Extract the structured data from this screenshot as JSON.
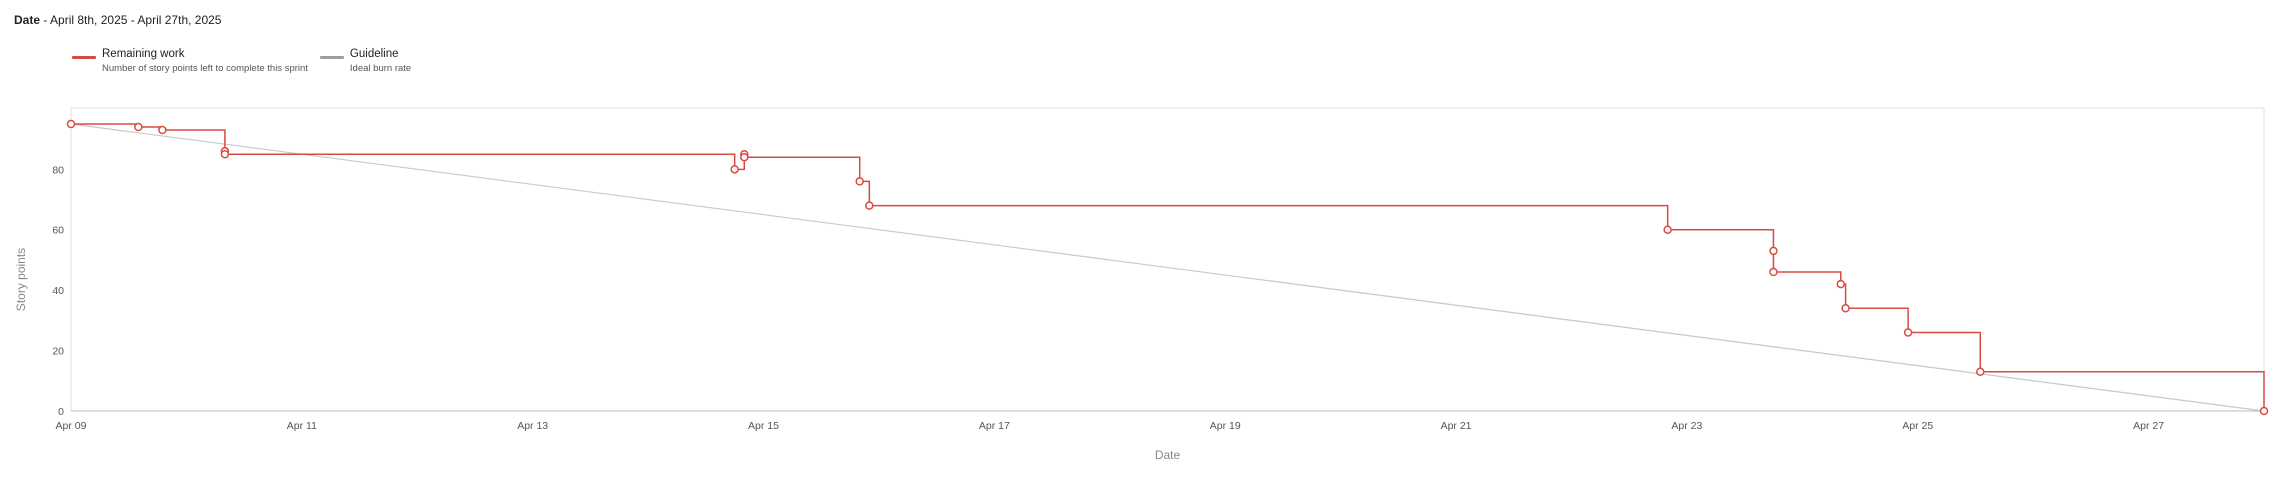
{
  "header": {
    "date_label": "Date",
    "date_range": "April 8th, 2025 - April 27th, 2025"
  },
  "legend": [
    {
      "name": "Remaining work",
      "description": "Number of story points left to complete this sprint",
      "color": "#d84b40"
    },
    {
      "name": "Guideline",
      "description": "Ideal burn rate",
      "color": "#9e9e9e"
    }
  ],
  "chart_data": {
    "type": "line",
    "xlabel": "Date",
    "ylabel": "Story points",
    "ylim": [
      0,
      95
    ],
    "yticks": [
      0,
      20,
      40,
      60,
      80
    ],
    "xlim": [
      "2025-04-09",
      "2025-04-28"
    ],
    "xticks": [
      "Apr 09",
      "Apr 11",
      "Apr 13",
      "Apr 15",
      "Apr 17",
      "Apr 19",
      "Apr 21",
      "Apr 23",
      "Apr 25",
      "Apr 27"
    ],
    "grid": false,
    "legend_position": "top-left",
    "series": [
      {
        "name": "Remaining work",
        "color": "#d84b40",
        "step": true,
        "points": [
          {
            "x": "2025-04-09 00:00",
            "y": 95
          },
          {
            "x": "2025-04-09 14:00",
            "y": 94
          },
          {
            "x": "2025-04-09 19:00",
            "y": 93
          },
          {
            "x": "2025-04-10 08:00",
            "y": 86
          },
          {
            "x": "2025-04-10 08:00",
            "y": 85
          },
          {
            "x": "2025-04-14 18:00",
            "y": 80
          },
          {
            "x": "2025-04-14 20:00",
            "y": 85
          },
          {
            "x": "2025-04-14 20:00",
            "y": 84
          },
          {
            "x": "2025-04-15 20:00",
            "y": 76
          },
          {
            "x": "2025-04-15 22:00",
            "y": 68
          },
          {
            "x": "2025-04-22 20:00",
            "y": 60
          },
          {
            "x": "2025-04-23 18:00",
            "y": 53
          },
          {
            "x": "2025-04-23 18:00",
            "y": 46
          },
          {
            "x": "2025-04-24 08:00",
            "y": 42
          },
          {
            "x": "2025-04-24 09:00",
            "y": 34
          },
          {
            "x": "2025-04-24 22:00",
            "y": 26
          },
          {
            "x": "2025-04-25 13:00",
            "y": 13
          },
          {
            "x": "2025-04-28 00:00",
            "y": 0
          }
        ]
      },
      {
        "name": "Guideline",
        "color": "#c8c8c8",
        "points": [
          {
            "x": "2025-04-09 00:00",
            "y": 95
          },
          {
            "x": "2025-04-28 00:00",
            "y": 0
          }
        ]
      }
    ]
  }
}
